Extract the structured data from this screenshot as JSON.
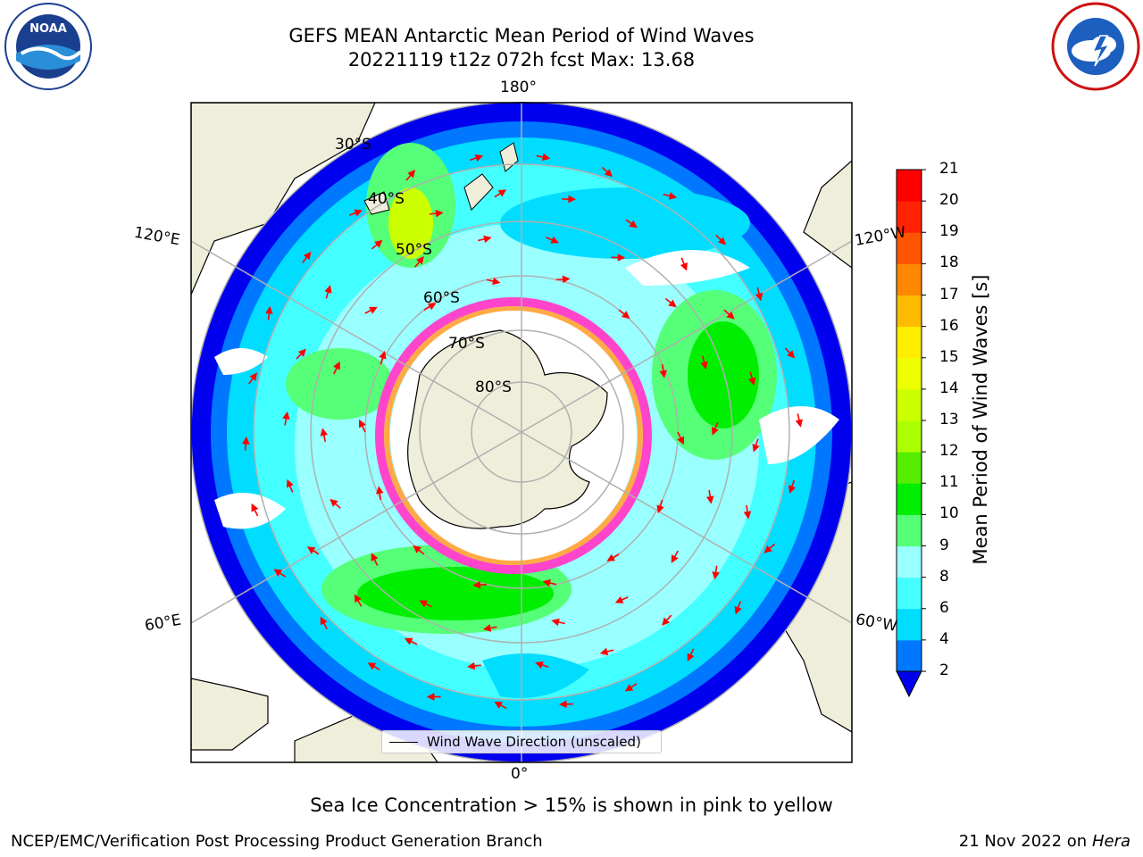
{
  "title": {
    "line1": "GEFS MEAN Antarctic Mean Period of Wind Waves",
    "line2": "20221119 t12z 072h fcst   Max: 13.68"
  },
  "logos": {
    "left": "noaa-logo",
    "left_text": "NOAA",
    "right": "nws-logo"
  },
  "map": {
    "projection": "south-polar-stereographic",
    "longitude_labels": [
      "180°",
      "120°E",
      "120°W",
      "60°E",
      "60°W",
      "0°"
    ],
    "latitude_labels": [
      "30°S",
      "40°S",
      "50°S",
      "60°S",
      "70°S",
      "80°S"
    ],
    "legend_text": "Wind Wave Direction (unscaled)",
    "colors": {
      "land": "#efeedb",
      "ocean_blank": "#ffffff",
      "grid": "#b0b0b0",
      "arrow": "#ff0000",
      "ice_pink": "#ff44cc",
      "ice_orange": "#ffaa44"
    }
  },
  "colorbar": {
    "title": "Mean Period of Wind Waves [s]",
    "levels": [
      "2",
      "4",
      "6",
      "8",
      "9",
      "10",
      "11",
      "12",
      "13",
      "14",
      "15",
      "16",
      "17",
      "18",
      "19",
      "20",
      "21"
    ],
    "colors": [
      "#0000ee",
      "#0077ff",
      "#00ddff",
      "#44ffff",
      "#99ffff",
      "#55ff77",
      "#00ee00",
      "#55ee00",
      "#aaff00",
      "#ccff00",
      "#eeff00",
      "#ffee00",
      "#ffbb00",
      "#ff8800",
      "#ff5500",
      "#ff2200",
      "#ff0000"
    ],
    "extend": "min"
  },
  "ice_note": "Sea Ice Concentration > 15% is shown in pink to yellow",
  "footer": {
    "left": "NCEP/EMC/Verification Post Processing Product Generation Branch",
    "right_date": "21 Nov 2022 on",
    "right_machine": "Hera"
  }
}
